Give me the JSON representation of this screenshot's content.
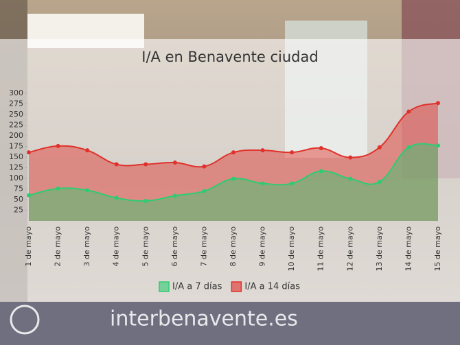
{
  "chart_data": {
    "type": "line",
    "title": "I/A en Benavente ciudad",
    "categories": [
      "1 de mayo",
      "2 de mayo",
      "3 de mayo",
      "4 de mayo",
      "5 de mayo",
      "6 de mayo",
      "7 de mayo",
      "8 de mayo",
      "9 de mayo",
      "10 de mayo",
      "11 de mayo",
      "12 de mayo",
      "13 de mayo",
      "14 de mayo",
      "15 de mayo"
    ],
    "series": [
      {
        "name": "I/A a 7 días",
        "color": "#2ecc71",
        "values": [
          60,
          76,
          72,
          54,
          47,
          59,
          70,
          99,
          88,
          88,
          117,
          99,
          92,
          173,
          177
        ]
      },
      {
        "name": "I/A a 14 días",
        "color": "#e0312b",
        "values": [
          161,
          176,
          166,
          133,
          133,
          137,
          128,
          161,
          166,
          161,
          171,
          149,
          173,
          257,
          277
        ]
      }
    ],
    "ylim": [
      0,
      300
    ],
    "yticks": [
      25,
      50,
      75,
      100,
      125,
      150,
      175,
      200,
      225,
      250,
      275,
      300
    ],
    "legend": "bottom"
  },
  "watermark": "interbenavente.es"
}
